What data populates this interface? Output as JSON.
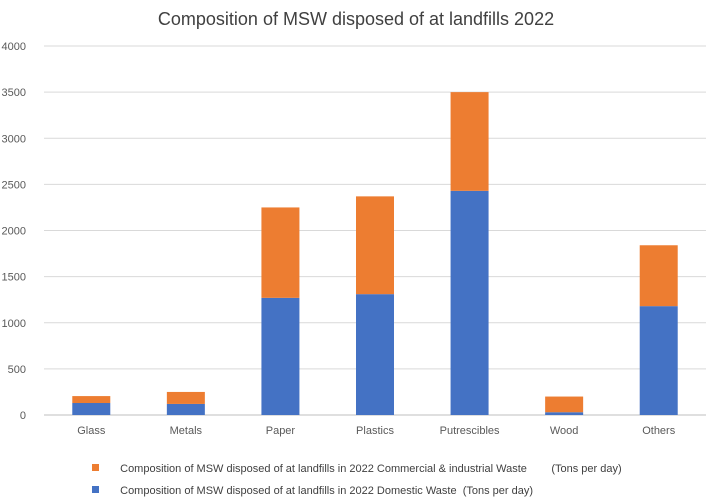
{
  "chart_data": {
    "type": "bar",
    "stacked": true,
    "title": "Composition of MSW disposed of at landfills 2022",
    "xlabel": "",
    "ylabel": "",
    "ylim": [
      0,
      4000
    ],
    "yticks": [
      0,
      500,
      1000,
      1500,
      2000,
      2500,
      3000,
      3500,
      4000
    ],
    "grid": true,
    "legend_position": "bottom",
    "categories": [
      "Glass",
      "Metals",
      "Paper",
      "Plastics",
      "Putrescibles",
      "Wood",
      "Others"
    ],
    "series": [
      {
        "name": "Composition of MSW disposed of at landfills in 2022 Domestic Waste  (Tons per day)",
        "color": "#4472c4",
        "values": [
          130,
          120,
          1270,
          1310,
          2430,
          30,
          1180
        ]
      },
      {
        "name": "Composition of MSW disposed of at landfills in 2022 Commercial & industrial Waste        (Tons per day)",
        "color": "#ed7d31",
        "values": [
          75,
          130,
          980,
          1060,
          1070,
          170,
          660
        ]
      }
    ]
  }
}
